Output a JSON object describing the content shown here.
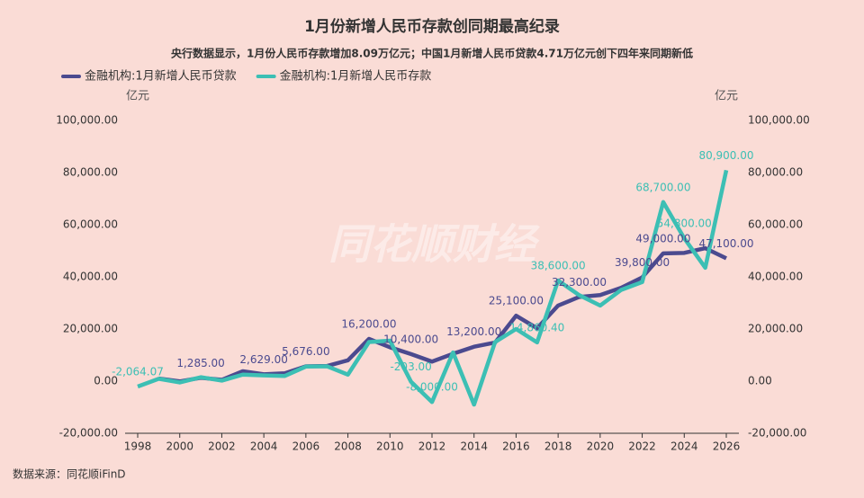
{
  "chart_data": {
    "type": "line",
    "title": "1月份新增人民币存款创同期最高纪录",
    "subtitle": "央行数据显示，1月份人民币存款增加8.09万亿元；中国1月新增人民币贷款4.71万亿元创下四年来同期新低",
    "y_unit": "亿元",
    "y2_unit": "亿元",
    "watermark": "同花顺财经",
    "source": "数据来源：同花顺iFinD",
    "legend": "top-left",
    "x": [
      1998,
      1999,
      2000,
      2001,
      2002,
      2003,
      2004,
      2005,
      2006,
      2007,
      2008,
      2009,
      2010,
      2011,
      2012,
      2013,
      2014,
      2015,
      2016,
      2017,
      2018,
      2019,
      2020,
      2021,
      2022,
      2023,
      2024,
      2025,
      2026
    ],
    "xlim": [
      1997.4,
      2026.6
    ],
    "xticks": [
      1998,
      2000,
      2002,
      2004,
      2006,
      2008,
      2010,
      2012,
      2014,
      2016,
      2018,
      2020,
      2022,
      2024,
      2026
    ],
    "ylim": [
      -20000,
      100000
    ],
    "yticks": [
      {
        "value": -20000,
        "label": "-20,000.00"
      },
      {
        "value": 0,
        "label": "0.00"
      },
      {
        "value": 20000,
        "label": "20,000.00"
      },
      {
        "value": 40000,
        "label": "40,000.00"
      },
      {
        "value": 60000,
        "label": "60,000.00"
      },
      {
        "value": 80000,
        "label": "80,000.00"
      },
      {
        "value": 100000,
        "label": "100,000.00"
      }
    ],
    "y2lim": [
      -20000,
      100000
    ],
    "y2ticks": [
      {
        "value": -20000,
        "label": "-20,000.00"
      },
      {
        "value": 0,
        "label": "0.00"
      },
      {
        "value": 20000,
        "label": "20,000.00"
      },
      {
        "value": 40000,
        "label": "40,000.00"
      },
      {
        "value": 60000,
        "label": "60,000.00"
      },
      {
        "value": 80000,
        "label": "80,000.00"
      },
      {
        "value": 100000,
        "label": "100,000.00"
      }
    ],
    "series": [
      {
        "name": "金融机构:1月新增人民币贷款",
        "color": "#4b4a8f",
        "axis": "y",
        "values": [
          null,
          1000,
          -100,
          1285,
          500,
          3800,
          2629,
          3000,
          5676,
          5800,
          8000,
          16200,
          13000,
          10400,
          7500,
          10500,
          13200,
          14800,
          25100,
          20300,
          29000,
          32300,
          33000,
          35800,
          39800,
          49000,
          49200,
          51000,
          47100
        ],
        "value_labels": [
          null,
          null,
          null,
          "1,285.00",
          null,
          null,
          "2,629.00",
          null,
          "5,676.00",
          null,
          null,
          "16,200.00",
          null,
          "10,400.00",
          null,
          null,
          "13,200.00",
          null,
          "25,100.00",
          null,
          null,
          "32,300.00",
          null,
          null,
          "39,800.00",
          "49,000.00",
          null,
          null,
          "47,100.00"
        ]
      },
      {
        "name": "金融机构:1月新增人民币存款",
        "color": "#3cbfb4",
        "axis": "y2",
        "values": [
          -2064.07,
          900,
          -500,
          1500,
          200,
          2500,
          2200,
          2000,
          5600,
          5700,
          2500,
          15000,
          15500,
          -203,
          -8000,
          11000,
          -9000,
          15000,
          20000,
          14860.4,
          38600,
          33000,
          29000,
          35000,
          38000,
          68700,
          54800,
          43500,
          80900
        ],
        "value_labels": [
          "-2,064.07",
          null,
          null,
          null,
          null,
          null,
          null,
          null,
          null,
          null,
          null,
          null,
          null,
          "-203.00",
          "-8,000.00",
          null,
          null,
          null,
          null,
          "14,860.40",
          "38,600.00",
          null,
          null,
          null,
          null,
          "68,700.00",
          "54,800.00",
          null,
          "80,900.00"
        ]
      }
    ]
  }
}
